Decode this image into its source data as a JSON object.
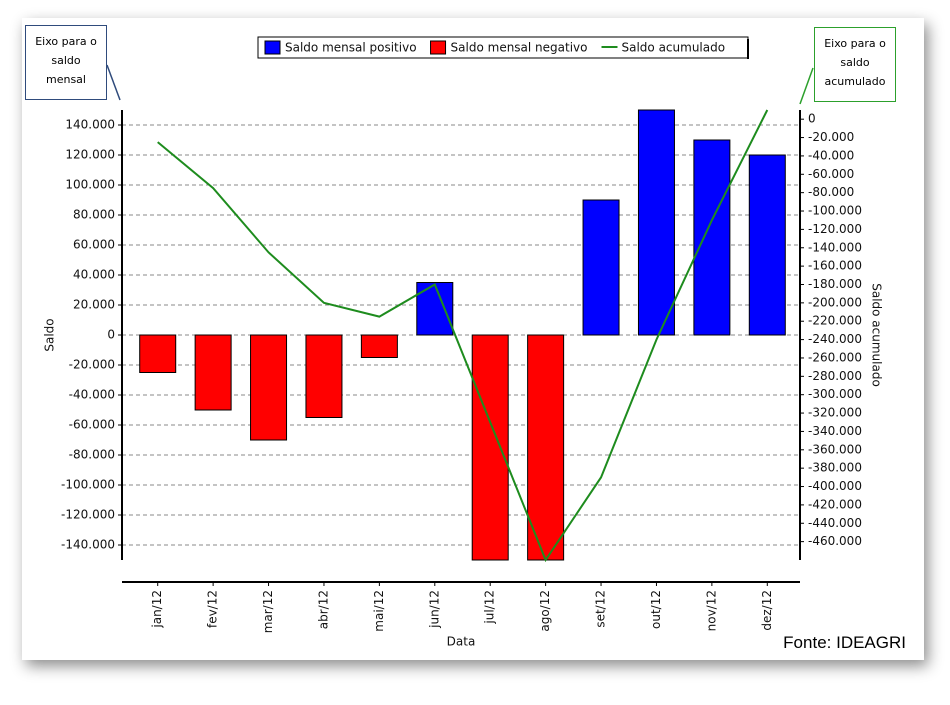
{
  "chart_data": {
    "type": "bar",
    "x_label": "Data",
    "y_label": "Saldo",
    "y2_label": "Saldo acumulado",
    "annotations": [
      "Eixo para o saldo mensal",
      "Eixo para o saldo acumulado",
      "Fonte: IDEAGRI"
    ],
    "categories": [
      "jan/12",
      "fev/12",
      "mar/12",
      "abr/12",
      "mai/12",
      "jun/12",
      "jul/12",
      "ago/12",
      "set/12",
      "out/12",
      "nov/12",
      "dez/12"
    ],
    "series": [
      {
        "name": "Saldo mensal positivo",
        "color": "#0000ff",
        "type": "bar",
        "values": [
          null,
          null,
          null,
          null,
          null,
          35000,
          null,
          null,
          90000,
          150000,
          130000,
          120000
        ]
      },
      {
        "name": "Saldo mensal negativo",
        "color": "#ff0000",
        "type": "bar",
        "values": [
          -25000,
          -50000,
          -70000,
          -55000,
          -15000,
          null,
          -150000,
          -150000,
          null,
          null,
          null,
          null
        ]
      },
      {
        "name": "Saldo acumulado",
        "color": "#1e8c1e",
        "type": "line",
        "axis": "y2",
        "values": [
          -25000,
          -75000,
          -145000,
          -200000,
          -215000,
          -180000,
          -330000,
          -480000,
          -390000,
          -240000,
          -110000,
          10000
        ]
      }
    ],
    "ylim": [
      -150000,
      150000
    ],
    "yticks": [
      {
        "value": 140000,
        "label": "140.000"
      },
      {
        "value": 120000,
        "label": "120.000"
      },
      {
        "value": 100000,
        "label": "100.000"
      },
      {
        "value": 80000,
        "label": "80.000"
      },
      {
        "value": 60000,
        "label": "60.000"
      },
      {
        "value": 40000,
        "label": "40.000"
      },
      {
        "value": 20000,
        "label": "20.000"
      },
      0,
      {
        "value": -20000,
        "label": "-20.000"
      },
      {
        "value": -40000,
        "label": "-40.000"
      },
      {
        "value": -60000,
        "label": "-60.000"
      },
      {
        "value": -80000,
        "label": "-80.000"
      },
      {
        "value": -100000,
        "label": "-100.000"
      },
      {
        "value": -120000,
        "label": "-120.000"
      },
      {
        "value": -140000,
        "label": "-140.000"
      }
    ],
    "y2lim": [
      -480000,
      10000
    ],
    "y2ticks": [
      0,
      {
        "value": -20000,
        "label": "-20.000"
      },
      {
        "value": -40000,
        "label": "-40.000"
      },
      {
        "value": -60000,
        "label": "-60.000"
      },
      {
        "value": -80000,
        "label": "-80.000"
      },
      {
        "value": -100000,
        "label": "-100.000"
      },
      {
        "value": -120000,
        "label": "-120.000"
      },
      {
        "value": -140000,
        "label": "-140.000"
      },
      {
        "value": -160000,
        "label": "-160.000"
      },
      {
        "value": -180000,
        "label": "-180.000"
      },
      {
        "value": -200000,
        "label": "-200.000"
      },
      {
        "value": -220000,
        "label": "-220.000"
      },
      {
        "value": -240000,
        "label": "-240.000"
      },
      {
        "value": -260000,
        "label": "-260.000"
      },
      {
        "value": -280000,
        "label": "-280.000"
      },
      {
        "value": -300000,
        "label": "-300.000"
      },
      {
        "value": -320000,
        "label": "-320.000"
      },
      {
        "value": -340000,
        "label": "-340.000"
      },
      {
        "value": -360000,
        "label": "-360.000"
      },
      {
        "value": -380000,
        "label": "-380.000"
      },
      {
        "value": -400000,
        "label": "-400.000"
      },
      {
        "value": -420000,
        "label": "-420.000"
      },
      {
        "value": -440000,
        "label": "-440.000"
      },
      {
        "value": -460000,
        "label": "-460.000"
      }
    ],
    "grid": true,
    "legend": "top"
  }
}
